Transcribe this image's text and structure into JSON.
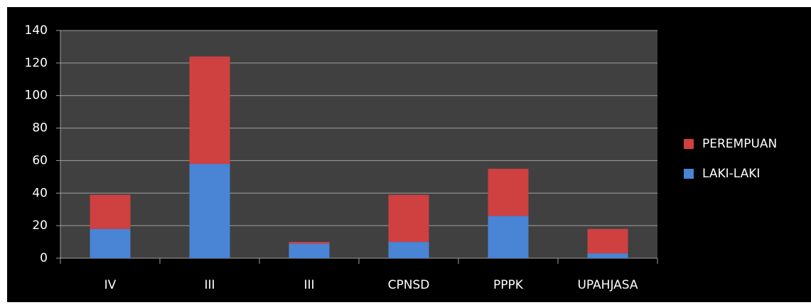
{
  "chart_data": {
    "type": "stacked_bar",
    "categories": [
      "IV",
      "III",
      "III",
      "CPNSD",
      "PPPK",
      "UPAHJASA"
    ],
    "series": [
      {
        "name": "LAKI-LAKI",
        "color": "#4a84d4",
        "values": [
          18,
          58,
          9,
          10,
          26,
          3
        ]
      },
      {
        "name": "PEREMPUAN",
        "color": "#cf4040",
        "values": [
          21,
          66,
          1,
          29,
          29,
          15
        ]
      }
    ],
    "ylim": [
      0,
      140
    ],
    "yticks": [
      0,
      20,
      40,
      60,
      80,
      100,
      120,
      140
    ],
    "grid": true,
    "legend": "right"
  }
}
